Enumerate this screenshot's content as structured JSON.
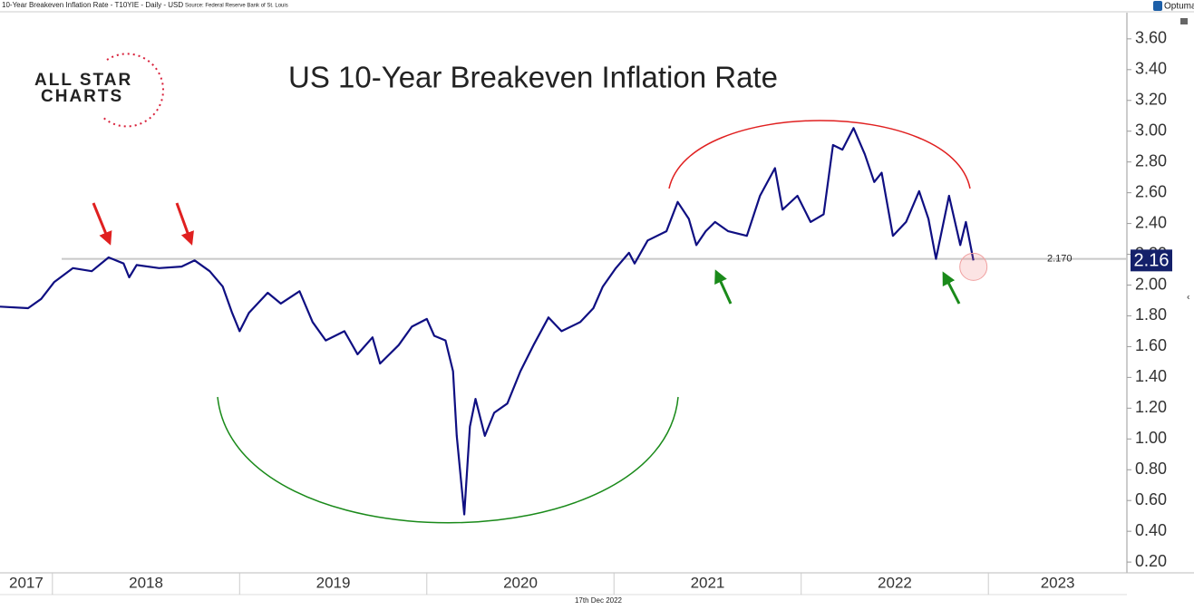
{
  "chart_data": {
    "type": "line",
    "title": "US 10-Year Breakeven Inflation Rate",
    "subtitle": "10-Year Breakeven Inflation Rate - T10YIE - Daily - USD",
    "source": "Source: Federal Reserve Bank of St. Louis",
    "brand": "Optuma",
    "date_label": "17th Dec 2022",
    "logo": [
      "ALL STAR",
      "CHARTS"
    ],
    "color": "#0f0f82",
    "x": [
      2017.72,
      2017.87,
      2017.94,
      2018.01,
      2018.11,
      2018.21,
      2018.3,
      2018.38,
      2018.41,
      2018.45,
      2018.57,
      2018.69,
      2018.76,
      2018.84,
      2018.91,
      2018.96,
      2019.0,
      2019.05,
      2019.15,
      2019.22,
      2019.32,
      2019.39,
      2019.46,
      2019.56,
      2019.63,
      2019.71,
      2019.75,
      2019.85,
      2019.92,
      2020.0,
      2020.04,
      2020.1,
      2020.14,
      2020.16,
      2020.2,
      2020.23,
      2020.26,
      2020.31,
      2020.36,
      2020.43,
      2020.5,
      2020.57,
      2020.65,
      2020.72,
      2020.82,
      2020.89,
      2020.94,
      2021.01,
      2021.08,
      2021.11,
      2021.18,
      2021.28,
      2021.34,
      2021.4,
      2021.44,
      2021.49,
      2021.54,
      2021.61,
      2021.71,
      2021.78,
      2021.86,
      2021.9,
      2021.98,
      2022.05,
      2022.12,
      2022.17,
      2022.22,
      2022.28,
      2022.34,
      2022.39,
      2022.43,
      2022.49,
      2022.56,
      2022.63,
      2022.68,
      2022.72,
      2022.79,
      2022.85,
      2022.88,
      2022.92
    ],
    "values": [
      1.86,
      1.85,
      1.91,
      2.02,
      2.11,
      2.09,
      2.18,
      2.14,
      2.05,
      2.13,
      2.11,
      2.12,
      2.16,
      2.09,
      1.99,
      1.82,
      1.7,
      1.82,
      1.95,
      1.88,
      1.96,
      1.76,
      1.64,
      1.7,
      1.55,
      1.66,
      1.49,
      1.61,
      1.73,
      1.78,
      1.67,
      1.64,
      1.44,
      1.02,
      0.51,
      1.08,
      1.26,
      1.02,
      1.17,
      1.23,
      1.44,
      1.61,
      1.79,
      1.7,
      1.76,
      1.85,
      1.99,
      2.11,
      2.21,
      2.14,
      2.29,
      2.35,
      2.54,
      2.43,
      2.26,
      2.35,
      2.41,
      2.35,
      2.32,
      2.58,
      2.76,
      2.49,
      2.58,
      2.41,
      2.46,
      2.91,
      2.88,
      3.02,
      2.85,
      2.67,
      2.73,
      2.32,
      2.41,
      2.61,
      2.43,
      2.17,
      2.58,
      2.26,
      2.41,
      2.16
    ],
    "xlim": [
      2017.72,
      2023.74
    ],
    "xticks": [
      2017,
      2018,
      2019,
      2020,
      2021,
      2022,
      2023
    ],
    "ylim": [
      0.13,
      3.77
    ],
    "yticks": [
      {
        "value": 0.2,
        "label": "0.20"
      },
      {
        "value": 0.4,
        "label": "0.40"
      },
      {
        "value": 0.6,
        "label": "0.60"
      },
      {
        "value": 0.8,
        "label": "0.80"
      },
      {
        "value": 1.0,
        "label": "1.00"
      },
      {
        "value": 1.2,
        "label": "1.20"
      },
      {
        "value": 1.4,
        "label": "1.40"
      },
      {
        "value": 1.6,
        "label": "1.60"
      },
      {
        "value": 1.8,
        "label": "1.80"
      },
      {
        "value": 2.0,
        "label": "2.00"
      },
      {
        "value": 2.2,
        "label": "2.20"
      },
      {
        "value": 2.4,
        "label": "2.40"
      },
      {
        "value": 2.6,
        "label": "2.60"
      },
      {
        "value": 2.8,
        "label": "2.80"
      },
      {
        "value": 3.0,
        "label": "3.00"
      },
      {
        "value": 3.2,
        "label": "3.20"
      },
      {
        "value": 3.4,
        "label": "3.40"
      },
      {
        "value": 3.6,
        "label": "3.60"
      }
    ],
    "reference_line": {
      "value": 2.17,
      "label": "2.170"
    },
    "end_label": {
      "value": 2.16,
      "label": "2.16"
    }
  }
}
